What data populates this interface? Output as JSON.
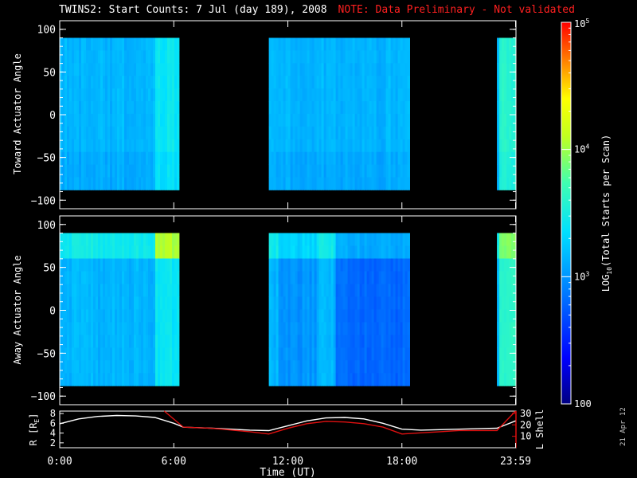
{
  "header": {
    "title": "TWINS2: Start Counts:  7 Jul (day 189), 2008",
    "note": "NOTE: Data Preliminary - Not validated"
  },
  "side_stamp": "21 Apr 12",
  "colors": {
    "background": "#000000",
    "axis": "#ffffff",
    "note_red": "#ff2020",
    "l_shell_line": "#e01010",
    "r_line": "#ffffff"
  },
  "chart_data": [
    {
      "type": "heatmap",
      "name": "toward-panel",
      "ylabel": "Toward Actuator Angle",
      "ylim": [
        -110,
        110
      ],
      "yticks": [
        100,
        50,
        0,
        -50,
        -100
      ],
      "xlim_hours": [
        0,
        24
      ],
      "angle_range": [
        -88,
        90
      ],
      "data_intervals_hours": [
        [
          0,
          6.2
        ],
        [
          11.0,
          18.4
        ],
        [
          23.0,
          24.0
        ]
      ],
      "typical_log_counts": [
        3.0,
        3.6
      ],
      "features": "mostly cyan (~10^3) with greener bands near 6:00 and after 23:00"
    },
    {
      "type": "heatmap",
      "name": "away-panel",
      "ylabel": "Away Actuator Angle",
      "ylim": [
        -110,
        110
      ],
      "yticks": [
        100,
        50,
        0,
        -50,
        -100
      ],
      "xlim_hours": [
        0,
        24
      ],
      "angle_range": [
        -88,
        90
      ],
      "data_intervals_hours": [
        [
          0,
          6.2
        ],
        [
          11.0,
          18.4
        ],
        [
          23.0,
          24.0
        ]
      ],
      "typical_log_counts": [
        2.6,
        3.6
      ],
      "features": "brighter band near +70 deg; blue (lower counts) near 15:00-18:00"
    },
    {
      "type": "line",
      "name": "orbit-panel",
      "ylabel_left": "R [R",
      "ylabel_left_sub": "E",
      "ylabel_left_tail": "]",
      "ylabel_right": "L Shell",
      "yticks_left": [
        8,
        6,
        4,
        2
      ],
      "yticks_right": [
        30,
        20,
        10
      ],
      "ylim_left": [
        1,
        8.5
      ],
      "ylim_right": [
        0,
        32
      ],
      "series": [
        {
          "axis": "left",
          "x": [
            0,
            1,
            2,
            3,
            4,
            5,
            6,
            6.5,
            8,
            10,
            11,
            12,
            13,
            14,
            15,
            16,
            17,
            18,
            19,
            20,
            21,
            22,
            23,
            23.98
          ],
          "y": [
            5.9,
            6.9,
            7.4,
            7.6,
            7.5,
            7.2,
            6.0,
            5.2,
            5.0,
            4.6,
            4.5,
            5.5,
            6.5,
            7.1,
            7.2,
            6.9,
            6.0,
            4.8,
            4.6,
            4.7,
            4.8,
            4.9,
            5.0,
            6.5
          ]
        },
        {
          "axis": "right",
          "x": [
            5.5,
            6.5,
            8,
            10,
            11,
            12,
            13,
            14,
            15,
            16,
            17,
            18,
            19,
            20,
            21,
            22,
            23,
            23.98
          ],
          "y": [
            32,
            18,
            17,
            14,
            12,
            17,
            21,
            23,
            22.5,
            21,
            18,
            12,
            13,
            14,
            15,
            15,
            15,
            32
          ]
        }
      ]
    }
  ],
  "xaxis": {
    "label": "Time (UT)",
    "ticks": [
      {
        "label": "0:00",
        "hour": 0
      },
      {
        "label": "6:00",
        "hour": 6
      },
      {
        "label": "12:00",
        "hour": 12
      },
      {
        "label": "18:00",
        "hour": 18
      },
      {
        "label": "23:59",
        "hour": 23.98
      }
    ]
  },
  "colorbar": {
    "label_prefix": "LOG",
    "label_sub": "10",
    "label_suffix": "(Total Starts per Scan)",
    "scale": "log",
    "range": [
      100,
      100000
    ],
    "tick_labels": [
      {
        "text": "10",
        "sup": "5",
        "log": 5
      },
      {
        "text": "10",
        "sup": "4",
        "log": 4
      },
      {
        "text": "10",
        "sup": "3",
        "log": 3
      },
      {
        "text": "100",
        "sup": "",
        "log": 2
      }
    ]
  }
}
